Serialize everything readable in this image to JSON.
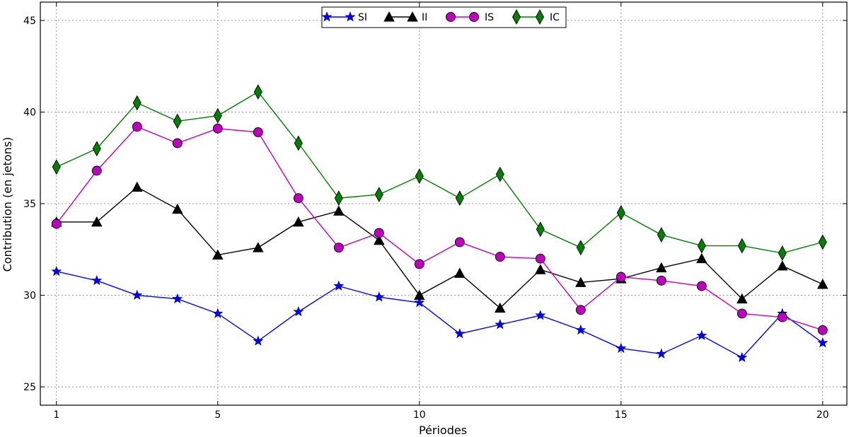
{
  "chart_data": {
    "type": "line",
    "title": "",
    "xlabel": "Périodes",
    "ylabel": "Contribution (en jetons)",
    "xlim": [
      0.6,
      20.6
    ],
    "ylim": [
      24,
      46
    ],
    "xticks": [
      1,
      5,
      10,
      15,
      20
    ],
    "yticks": [
      25,
      30,
      35,
      40,
      45
    ],
    "grid": true,
    "legend_position": "top-center",
    "x": [
      1,
      2,
      3,
      4,
      5,
      6,
      7,
      8,
      9,
      10,
      11,
      12,
      13,
      14,
      15,
      16,
      17,
      18,
      19,
      20
    ],
    "series": [
      {
        "name": "SI",
        "color": "#0000ff",
        "marker": "star",
        "values": [
          31.3,
          30.8,
          30.0,
          29.8,
          29.0,
          27.5,
          29.1,
          30.5,
          29.9,
          29.6,
          27.9,
          28.4,
          28.9,
          28.1,
          27.1,
          26.8,
          27.8,
          26.6,
          29.0,
          27.4
        ]
      },
      {
        "name": "II",
        "color": "#000000",
        "marker": "triangle",
        "values": [
          34.0,
          34.0,
          35.9,
          34.7,
          32.2,
          32.6,
          34.0,
          34.6,
          33.0,
          30.0,
          31.2,
          29.3,
          31.4,
          30.7,
          30.9,
          31.5,
          32.0,
          29.8,
          31.6,
          30.6
        ]
      },
      {
        "name": "IS",
        "color": "#bf00bf",
        "marker": "circle",
        "values": [
          33.9,
          36.8,
          39.2,
          38.3,
          39.1,
          38.9,
          35.3,
          32.6,
          33.4,
          31.7,
          32.9,
          32.1,
          32.0,
          29.2,
          31.0,
          30.8,
          30.5,
          29.0,
          28.8,
          28.1
        ]
      },
      {
        "name": "IC",
        "color": "#007f00",
        "marker": "diamond",
        "values": [
          37.0,
          38.0,
          40.5,
          39.5,
          39.8,
          41.1,
          38.3,
          35.3,
          35.5,
          36.5,
          35.3,
          36.6,
          33.6,
          32.6,
          34.5,
          33.3,
          32.7,
          32.7,
          32.3,
          32.9
        ]
      }
    ]
  }
}
